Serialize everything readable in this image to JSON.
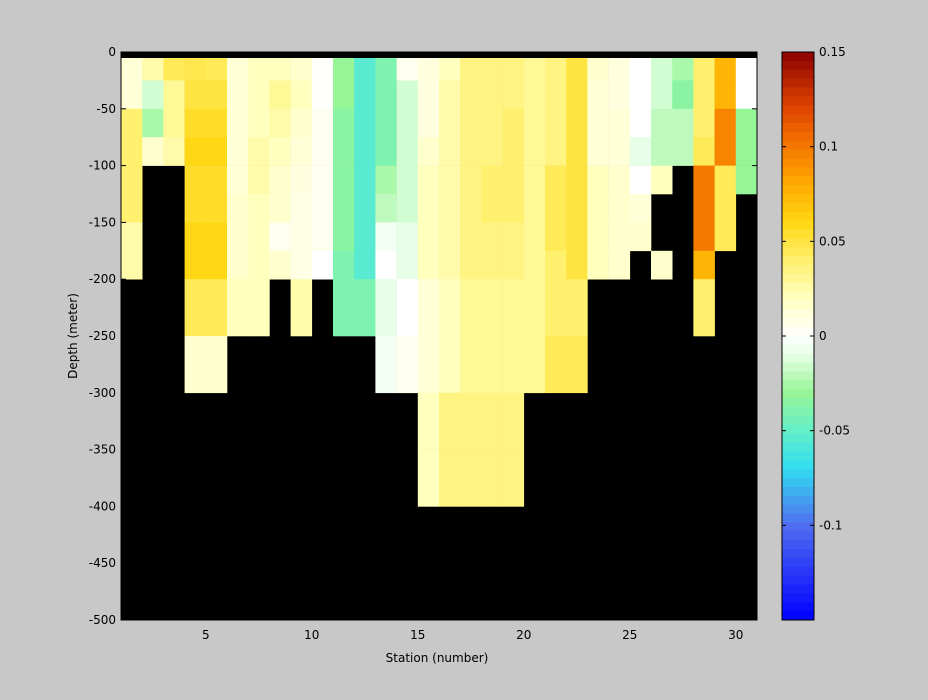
{
  "chart_data": {
    "type": "heatmap",
    "xlabel": "Station (number)",
    "ylabel": "Depth (meter)",
    "xlim": [
      1,
      31
    ],
    "ylim": [
      -500,
      0
    ],
    "xticks": [
      5,
      10,
      15,
      20,
      25,
      30
    ],
    "yticks": [
      0,
      -50,
      -100,
      -150,
      -200,
      -250,
      -300,
      -350,
      -400,
      -450,
      -500
    ],
    "colorbar": {
      "limits": [
        -0.15,
        0.15
      ],
      "ticks": [
        0.15,
        0.1,
        0.05,
        0,
        -0.05,
        -0.1
      ],
      "tick_labels": [
        "0.15",
        "0.1",
        "0.05",
        "0",
        "-0.05",
        "-0.1"
      ],
      "colormap": "blue-cyan-green-white-yellow-orange-red (64 steps)"
    },
    "background_color": "#000000",
    "row_tops": [
      -5,
      -25,
      -50,
      -75,
      -100,
      -125,
      -150,
      -175,
      -200,
      -250,
      -300,
      -350,
      -400
    ],
    "row_bottoms": [
      -25,
      -50,
      -75,
      -100,
      -125,
      -150,
      -175,
      -200,
      -250,
      -300,
      -350,
      -400,
      -450
    ],
    "stations": [
      1.5,
      2.5,
      3.5,
      4.5,
      5.5,
      6.5,
      7.5,
      8.5,
      9.5,
      10.5,
      11.5,
      12.5,
      13.5,
      14.5,
      15.5,
      16.5,
      17.5,
      18.5,
      19.5,
      20.5,
      21.5,
      22.5,
      23.5,
      24.5,
      25.5,
      26.5,
      27.5,
      28.5,
      29.5,
      30.5
    ],
    "values": [
      [
        0.012,
        0.025,
        0.045,
        0.047,
        0.045,
        0.012,
        0.02,
        0.02,
        0.015,
        0.001,
        -0.03,
        -0.055,
        -0.04,
        0.005,
        0.01,
        0.02,
        0.035,
        0.035,
        0.035,
        0.03,
        0.035,
        0.05,
        0.015,
        0.01,
        0.0,
        -0.015,
        -0.025,
        0.04,
        0.075,
        0.0
      ],
      [
        0.012,
        -0.015,
        0.03,
        0.05,
        0.05,
        0.012,
        0.02,
        0.03,
        0.02,
        0.001,
        -0.03,
        -0.055,
        -0.04,
        -0.015,
        0.01,
        0.025,
        0.035,
        0.035,
        0.035,
        0.03,
        0.035,
        0.05,
        0.012,
        0.01,
        0.0,
        -0.015,
        -0.035,
        0.04,
        0.075,
        0.0
      ],
      [
        0.04,
        -0.025,
        0.03,
        0.055,
        0.055,
        0.012,
        0.02,
        0.025,
        0.015,
        0.005,
        -0.035,
        -0.055,
        -0.04,
        -0.015,
        0.01,
        0.025,
        0.035,
        0.035,
        0.04,
        0.03,
        0.035,
        0.05,
        0.012,
        0.012,
        0.0,
        -0.02,
        -0.02,
        0.04,
        0.095,
        -0.03
      ],
      [
        0.04,
        0.015,
        0.025,
        0.06,
        0.06,
        0.012,
        0.025,
        0.02,
        0.012,
        0.005,
        -0.035,
        -0.055,
        -0.04,
        -0.015,
        0.015,
        0.025,
        0.035,
        0.035,
        0.04,
        0.03,
        0.035,
        0.05,
        0.012,
        0.012,
        -0.01,
        -0.02,
        -0.02,
        0.045,
        0.095,
        -0.03
      ],
      [
        0.04,
        null,
        null,
        0.055,
        0.055,
        0.012,
        0.025,
        0.015,
        0.01,
        0.005,
        -0.035,
        -0.055,
        -0.025,
        -0.015,
        0.02,
        0.025,
        0.035,
        0.04,
        0.04,
        0.03,
        0.045,
        0.05,
        0.02,
        0.015,
        0.0,
        0.02,
        null,
        0.1,
        0.045,
        -0.03
      ],
      [
        0.04,
        null,
        null,
        0.055,
        0.055,
        0.015,
        0.02,
        0.015,
        0.008,
        0.005,
        -0.035,
        -0.055,
        -0.02,
        -0.015,
        0.02,
        0.025,
        0.035,
        0.04,
        0.04,
        0.03,
        0.045,
        0.05,
        0.02,
        0.015,
        0.012,
        null,
        null,
        0.1,
        0.045,
        null
      ],
      [
        0.025,
        null,
        null,
        0.06,
        0.06,
        0.015,
        0.02,
        0.005,
        0.008,
        0.005,
        -0.035,
        -0.055,
        -0.005,
        -0.01,
        0.02,
        0.025,
        0.035,
        0.035,
        0.035,
        0.03,
        0.045,
        0.05,
        0.02,
        0.015,
        0.015,
        null,
        null,
        0.1,
        0.045,
        null
      ],
      [
        0.025,
        null,
        null,
        0.06,
        0.06,
        0.015,
        0.02,
        0.015,
        0.008,
        0.0,
        -0.04,
        -0.055,
        0.0,
        -0.01,
        0.02,
        0.025,
        0.035,
        0.035,
        0.035,
        0.03,
        0.04,
        0.05,
        0.02,
        0.015,
        null,
        0.015,
        null,
        0.075,
        null,
        null
      ],
      [
        null,
        null,
        null,
        0.045,
        0.045,
        0.02,
        0.02,
        null,
        0.025,
        null,
        -0.04,
        -0.04,
        -0.01,
        0.0,
        0.012,
        0.02,
        0.03,
        0.03,
        0.03,
        0.03,
        0.04,
        0.04,
        null,
        null,
        null,
        null,
        null,
        0.04,
        null,
        null
      ],
      [
        null,
        null,
        null,
        0.015,
        0.015,
        null,
        null,
        null,
        null,
        null,
        null,
        null,
        -0.005,
        0.005,
        0.012,
        0.02,
        0.03,
        0.03,
        0.03,
        0.03,
        0.045,
        0.045,
        null,
        null,
        null,
        null,
        null,
        null,
        null,
        null
      ],
      [
        null,
        null,
        null,
        null,
        null,
        null,
        null,
        null,
        null,
        null,
        null,
        null,
        null,
        null,
        0.02,
        0.035,
        0.035,
        0.035,
        0.035,
        null,
        null,
        null,
        null,
        null,
        null,
        null,
        null,
        null,
        null,
        null
      ],
      [
        null,
        null,
        null,
        null,
        null,
        null,
        null,
        null,
        null,
        null,
        null,
        null,
        null,
        null,
        0.02,
        0.035,
        0.035,
        0.035,
        0.035,
        null,
        null,
        null,
        null,
        null,
        null,
        null,
        null,
        null,
        null,
        null
      ],
      [
        null,
        null,
        null,
        null,
        null,
        null,
        null,
        null,
        null,
        null,
        null,
        null,
        null,
        null,
        null,
        null,
        null,
        null,
        null,
        null,
        null,
        null,
        null,
        null,
        null,
        null,
        null,
        null,
        null,
        null
      ]
    ]
  }
}
